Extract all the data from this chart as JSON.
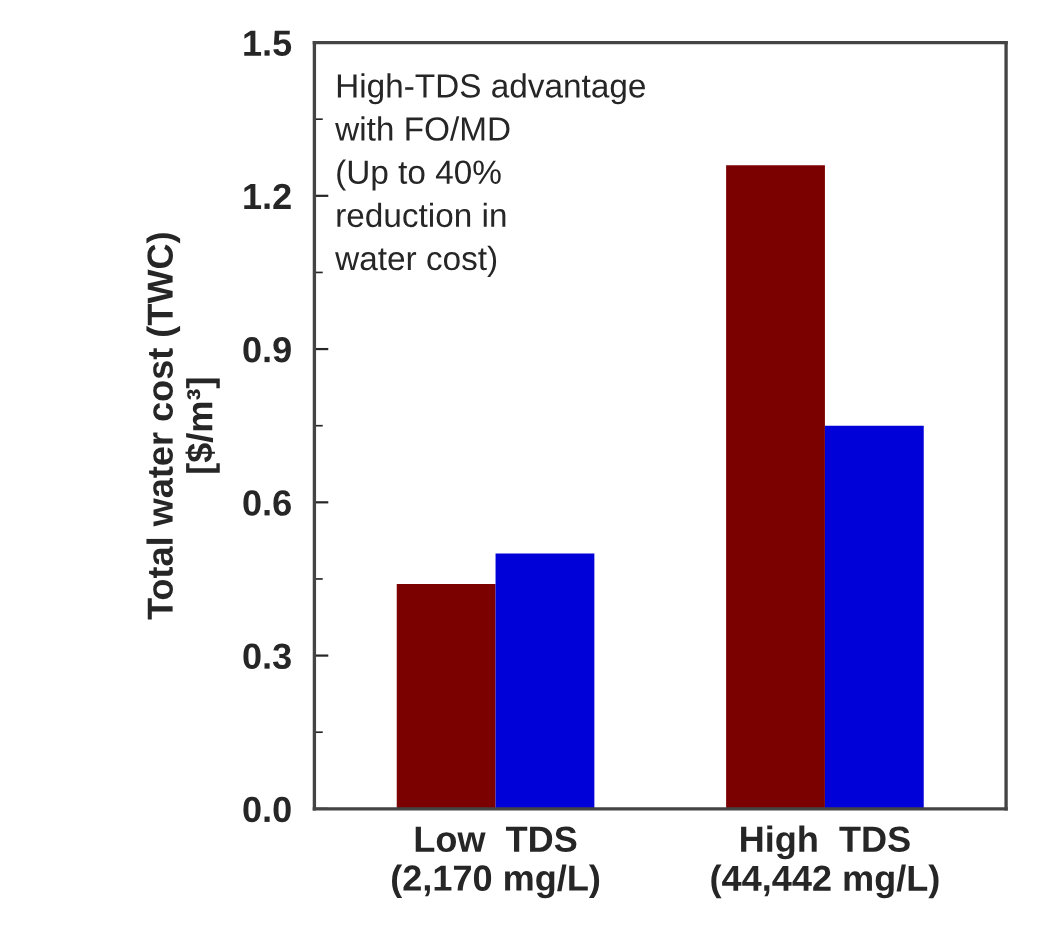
{
  "chart_data": {
    "type": "bar",
    "ylabel": "Total water cost (TWC)\n[$/m³]",
    "categories": [
      "Low  TDS\n(2,170 mg/L)",
      "High  TDS\n(44,442 mg/L)"
    ],
    "series": [
      {
        "color": "#7b0000",
        "values": [
          0.44,
          1.26
        ]
      },
      {
        "color": "#0000d8",
        "values": [
          0.5,
          0.75
        ]
      }
    ],
    "ylim": [
      0,
      1.5
    ],
    "yticks": [
      {
        "value": 0,
        "label": "0.0"
      },
      0.3,
      0.6,
      0.9,
      1.2,
      1.5
    ],
    "annotations": [
      "High-TDS advantage\nwith FO/MD\n(Up to 40%\nreduction in\nwater cost)"
    ],
    "grid": false,
    "legend": false
  }
}
